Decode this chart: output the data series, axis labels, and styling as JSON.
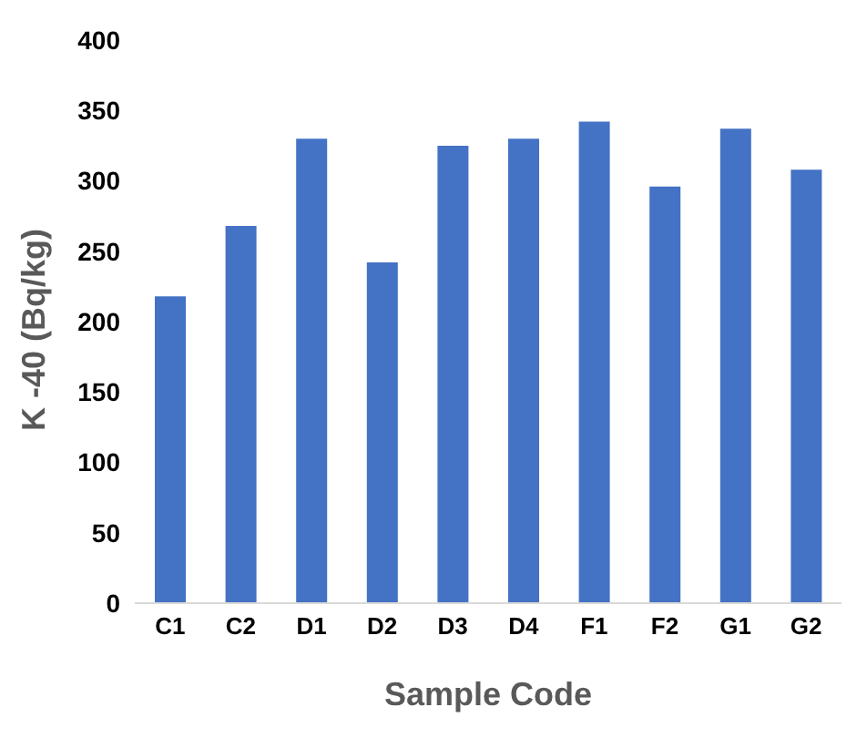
{
  "chart_data": {
    "type": "bar",
    "xlabel": "Sample Code",
    "ylabel": "K -40 (Bq/kg)",
    "categories": [
      "C1",
      "C2",
      "D1",
      "D2",
      "D3",
      "D4",
      "F1",
      "F2",
      "G1",
      "G2"
    ],
    "values": [
      218,
      268,
      330,
      242,
      325,
      330,
      342,
      296,
      337,
      308
    ],
    "color": "#4472c4",
    "ylim": [
      0,
      400
    ],
    "yticks": [
      0,
      50,
      100,
      150,
      200,
      250,
      300,
      350,
      400
    ],
    "grid": false,
    "legend": false
  }
}
